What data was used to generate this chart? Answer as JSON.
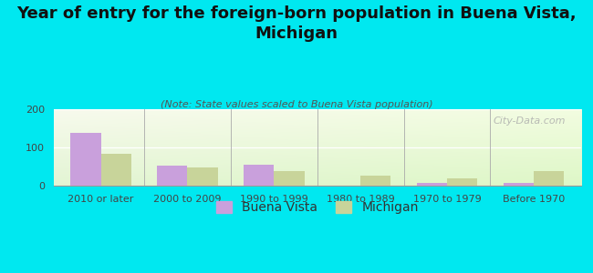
{
  "title": "Year of entry for the foreign-born population in Buena Vista,\nMichigan",
  "subtitle": "(Note: State values scaled to Buena Vista population)",
  "categories": [
    "2010 or later",
    "2000 to 2009",
    "1990 to 1999",
    "1980 to 1989",
    "1970 to 1979",
    "Before 1970"
  ],
  "buena_vista": [
    138,
    52,
    55,
    0,
    8,
    7
  ],
  "michigan": [
    83,
    47,
    37,
    27,
    20,
    38
  ],
  "buena_vista_color": "#c9a0dc",
  "michigan_color": "#c8d49a",
  "background_color": "#00e8f0",
  "ylim": [
    0,
    200
  ],
  "yticks": [
    0,
    100,
    200
  ],
  "watermark": "City-Data.com",
  "title_fontsize": 13,
  "subtitle_fontsize": 8,
  "legend_fontsize": 10,
  "tick_fontsize": 8,
  "bar_width": 0.35
}
